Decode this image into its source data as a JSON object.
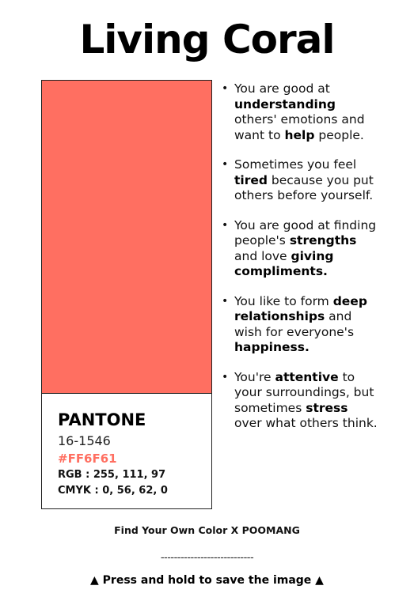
{
  "title": "Living Coral",
  "swatch": {
    "color": "#FF6F61",
    "brand": "PANTONE",
    "code": "16-1546",
    "hex": "#FF6F61",
    "rgb": "RGB : 255, 111, 97",
    "cmyk": "CMYK : 0, 56, 62, 0"
  },
  "bullet_glyph": "•",
  "traits": [
    {
      "segments": [
        {
          "text": "You are good at ",
          "bold": false
        },
        {
          "text": "understanding",
          "bold": true
        },
        {
          "text": " others' emotions and want to ",
          "bold": false
        },
        {
          "text": "help",
          "bold": true
        },
        {
          "text": " people.",
          "bold": false
        }
      ]
    },
    {
      "segments": [
        {
          "text": "Sometimes you feel ",
          "bold": false
        },
        {
          "text": "tired",
          "bold": true
        },
        {
          "text": " because you put others before yourself.",
          "bold": false
        }
      ]
    },
    {
      "segments": [
        {
          "text": "You are good at finding people's ",
          "bold": false
        },
        {
          "text": "strengths",
          "bold": true
        },
        {
          "text": " and love ",
          "bold": false
        },
        {
          "text": "giving compliments.",
          "bold": true
        }
      ]
    },
    {
      "segments": [
        {
          "text": "You like to form ",
          "bold": false
        },
        {
          "text": "deep relationships",
          "bold": true
        },
        {
          "text": " and wish for everyone's ",
          "bold": false
        },
        {
          "text": "happiness.",
          "bold": true
        }
      ]
    },
    {
      "segments": [
        {
          "text": "You're ",
          "bold": false
        },
        {
          "text": "attentive",
          "bold": true
        },
        {
          "text": " to your surroundings, but sometimes ",
          "bold": false
        },
        {
          "text": "stress",
          "bold": true
        },
        {
          "text": " over what others think.",
          "bold": false
        }
      ]
    }
  ],
  "footer": {
    "credit": "Find Your Own Color X POOMANG",
    "divider": "----------------------------",
    "save_hint": "▲ Press and hold to save the image ▲"
  }
}
